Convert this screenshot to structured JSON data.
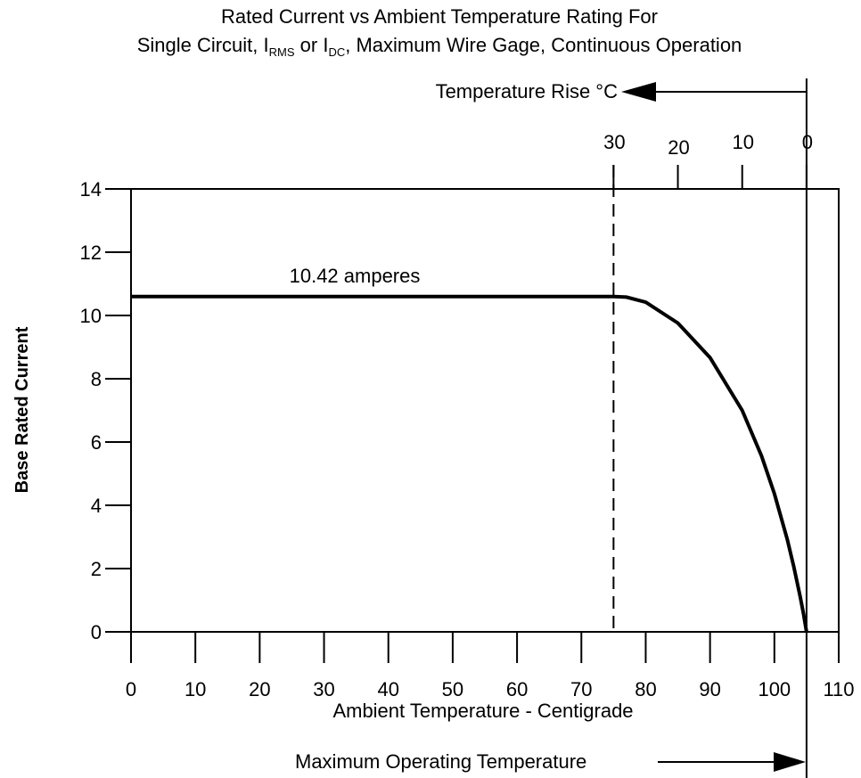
{
  "chart_data": {
    "type": "line",
    "title_line1": "Rated Current vs Ambient Temperature Rating For",
    "title_line2": {
      "prefix": "Single Circuit, I",
      "sub1": "RMS",
      "middle": " or I",
      "sub2": "DC",
      "suffix": ", Maximum Wire Gage, Continuous Operation"
    },
    "xlabel": "Ambient Temperature - Centigrade",
    "ylabel": "Base Rated Current",
    "xlim": [
      0,
      110
    ],
    "ylim": [
      0,
      14
    ],
    "x_ticks": [
      0,
      10,
      20,
      30,
      40,
      50,
      60,
      70,
      80,
      90,
      100,
      110
    ],
    "y_ticks": [
      0,
      2,
      4,
      6,
      8,
      10,
      12,
      14
    ],
    "top_axis": {
      "label": "Temperature Rise °C",
      "ticks": [
        {
          "label": "30",
          "x": 75
        },
        {
          "label": "20",
          "x": 85
        },
        {
          "label": "10",
          "x": 95
        },
        {
          "label": "0",
          "x": 105
        }
      ]
    },
    "series": [
      {
        "x": [
          0,
          75,
          77,
          80,
          85,
          90,
          95,
          98,
          100,
          102,
          103,
          104,
          104.5,
          105
        ],
        "y": [
          10.6,
          10.6,
          10.58,
          10.42,
          9.76,
          8.67,
          7.0,
          5.56,
          4.37,
          2.92,
          2.07,
          1.12,
          0.6,
          0.0
        ]
      }
    ],
    "annotations": {
      "curve_label": "10.42 amperes",
      "reference_line_x": 75,
      "max_temp_line_x": 105,
      "max_temp_label": "Maximum Operating Temperature"
    },
    "grid": false
  }
}
